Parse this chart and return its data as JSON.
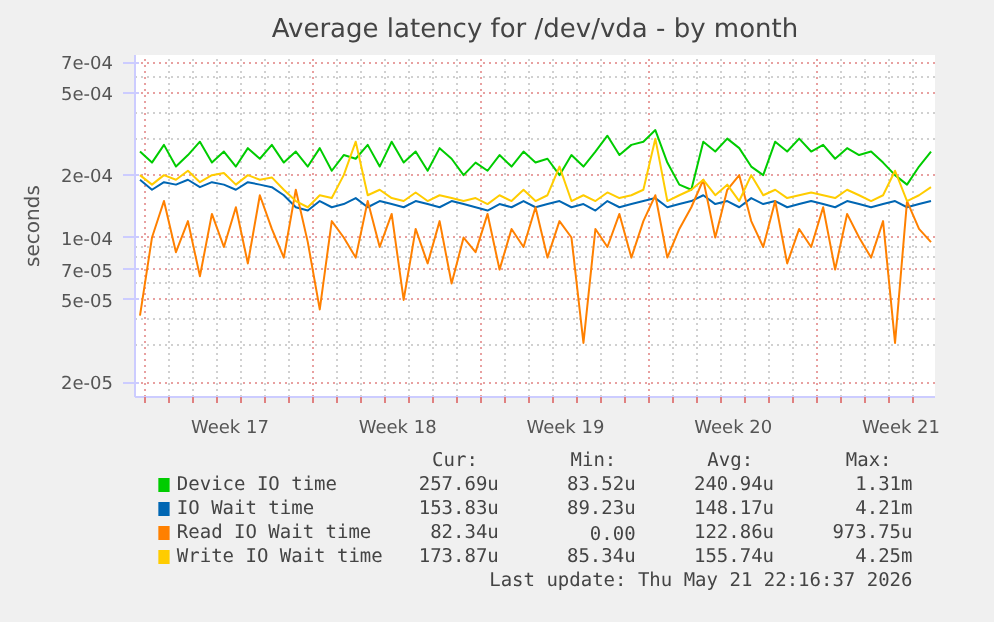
{
  "chart_data": {
    "type": "line",
    "title": "Average latency for /dev/vda - by month",
    "ylabel": "seconds",
    "x": [
      "2026-04-18T18:00",
      "2026-04-19T06:00",
      "2026-04-19T18:00",
      "2026-04-20T06:00",
      "2026-04-20T18:00",
      "2026-04-21T06:00",
      "2026-04-21T18:00",
      "2026-04-22T06:00",
      "2026-04-22T18:00",
      "2026-04-23T06:00",
      "2026-04-23T18:00",
      "2026-04-24T06:00",
      "2026-04-24T18:00",
      "2026-04-25T06:00",
      "2026-04-25T18:00",
      "2026-04-26T06:00",
      "2026-04-26T18:00",
      "2026-04-27T06:00",
      "2026-04-27T18:00",
      "2026-04-28T06:00",
      "2026-04-28T18:00",
      "2026-04-29T06:00",
      "2026-04-29T18:00",
      "2026-04-30T06:00",
      "2026-04-30T18:00",
      "2026-05-01T06:00",
      "2026-05-01T18:00",
      "2026-05-02T06:00",
      "2026-05-02T18:00",
      "2026-05-03T06:00",
      "2026-05-03T18:00",
      "2026-05-04T06:00",
      "2026-05-04T18:00",
      "2026-05-05T06:00",
      "2026-05-05T18:00",
      "2026-05-06T06:00",
      "2026-05-06T18:00",
      "2026-05-07T06:00",
      "2026-05-07T18:00",
      "2026-05-08T06:00",
      "2026-05-08T18:00",
      "2026-05-09T06:00",
      "2026-05-09T18:00",
      "2026-05-10T06:00",
      "2026-05-10T18:00",
      "2026-05-11T06:00",
      "2026-05-11T18:00",
      "2026-05-12T06:00",
      "2026-05-12T18:00",
      "2026-05-13T06:00",
      "2026-05-13T18:00",
      "2026-05-14T06:00",
      "2026-05-14T18:00",
      "2026-05-15T06:00",
      "2026-05-15T18:00",
      "2026-05-16T06:00",
      "2026-05-16T18:00",
      "2026-05-17T06:00",
      "2026-05-17T18:00",
      "2026-05-18T06:00",
      "2026-05-18T18:00",
      "2026-05-19T06:00",
      "2026-05-19T18:00",
      "2026-05-20T06:00",
      "2026-05-20T18:00",
      "2026-05-21T06:00",
      "2026-05-21T18:00"
    ],
    "series": [
      {
        "name": "Device IO time",
        "color": "#00cc00",
        "values": [
          0.00026,
          0.00023,
          0.00028,
          0.00022,
          0.00025,
          0.00029,
          0.00023,
          0.00026,
          0.00022,
          0.00027,
          0.00024,
          0.00028,
          0.00023,
          0.00026,
          0.00022,
          0.00027,
          0.00021,
          0.00025,
          0.00024,
          0.00028,
          0.00022,
          0.00029,
          0.00023,
          0.00026,
          0.00021,
          0.00027,
          0.00024,
          0.0002,
          0.00023,
          0.00021,
          0.00025,
          0.00022,
          0.00026,
          0.00023,
          0.00024,
          0.0002,
          0.00025,
          0.00022,
          0.00026,
          0.00031,
          0.00025,
          0.00028,
          0.00029,
          0.00033,
          0.00023,
          0.00018,
          0.00017,
          0.00029,
          0.00026,
          0.0003,
          0.00027,
          0.00022,
          0.0002,
          0.00029,
          0.00026,
          0.0003,
          0.00026,
          0.00028,
          0.00024,
          0.00027,
          0.00025,
          0.00026,
          0.00023,
          0.0002,
          0.00018,
          0.00022,
          0.00026
        ]
      },
      {
        "name": "IO Wait time",
        "color": "#0066b3",
        "values": [
          0.00019,
          0.00017,
          0.000185,
          0.00018,
          0.00019,
          0.000175,
          0.000185,
          0.00018,
          0.00017,
          0.000185,
          0.00018,
          0.000175,
          0.00016,
          0.00014,
          0.000135,
          0.00015,
          0.00014,
          0.000145,
          0.000155,
          0.00014,
          0.00015,
          0.000145,
          0.00014,
          0.00015,
          0.000145,
          0.00014,
          0.00015,
          0.000145,
          0.00014,
          0.000135,
          0.000145,
          0.00014,
          0.00015,
          0.00014,
          0.000145,
          0.00015,
          0.00014,
          0.000145,
          0.000135,
          0.00015,
          0.00014,
          0.000145,
          0.00015,
          0.000155,
          0.00014,
          0.000145,
          0.00015,
          0.00016,
          0.000145,
          0.00015,
          0.00014,
          0.000155,
          0.000145,
          0.00015,
          0.00014,
          0.000145,
          0.00015,
          0.000145,
          0.00014,
          0.00015,
          0.000145,
          0.00014,
          0.000145,
          0.00015,
          0.00014,
          0.000145,
          0.00015
        ]
      },
      {
        "name": "Read IO Wait time",
        "color": "#ff8000",
        "values": [
          4.2e-05,
          0.0001,
          0.00015,
          8.5e-05,
          0.00012,
          6.5e-05,
          0.00013,
          9e-05,
          0.00014,
          7.5e-05,
          0.00016,
          0.00011,
          8e-05,
          0.00017,
          9.5e-05,
          4.5e-05,
          0.00012,
          0.0001,
          8e-05,
          0.00015,
          9e-05,
          0.00013,
          5e-05,
          0.00011,
          7.5e-05,
          0.00012,
          6e-05,
          0.0001,
          8.5e-05,
          0.00013,
          7e-05,
          0.00011,
          9e-05,
          0.00014,
          8e-05,
          0.00012,
          0.0001,
          3.1e-05,
          0.00011,
          9e-05,
          0.00013,
          8e-05,
          0.00012,
          0.00016,
          8e-05,
          0.00011,
          0.00014,
          0.00019,
          0.0001,
          0.00017,
          0.0002,
          0.00012,
          9e-05,
          0.00015,
          7.5e-05,
          0.00011,
          9e-05,
          0.00014,
          7e-05,
          0.00013,
          0.0001,
          8e-05,
          0.00012,
          3.1e-05,
          0.00015,
          0.00011,
          9.5e-05
        ]
      },
      {
        "name": "Write IO Wait time",
        "color": "#ffcc00",
        "values": [
          0.0002,
          0.00018,
          0.0002,
          0.00019,
          0.00021,
          0.000185,
          0.0002,
          0.000205,
          0.00018,
          0.0002,
          0.00019,
          0.000195,
          0.00017,
          0.00015,
          0.00014,
          0.00016,
          0.000155,
          0.0002,
          0.00029,
          0.00016,
          0.00017,
          0.000155,
          0.00015,
          0.000165,
          0.00015,
          0.00016,
          0.000155,
          0.00015,
          0.000155,
          0.000145,
          0.00016,
          0.00015,
          0.00017,
          0.00015,
          0.00016,
          0.00022,
          0.00015,
          0.00016,
          0.00015,
          0.000165,
          0.000155,
          0.00016,
          0.00017,
          0.0003,
          0.00015,
          0.00016,
          0.00017,
          0.00019,
          0.00016,
          0.00018,
          0.00015,
          0.0002,
          0.00016,
          0.00017,
          0.000155,
          0.00016,
          0.000165,
          0.00016,
          0.000155,
          0.00017,
          0.00016,
          0.00015,
          0.00016,
          0.00021,
          0.00015,
          0.00016,
          0.000175
        ]
      }
    ],
    "log": "y",
    "grid": true,
    "legend": "bottom",
    "marker": "none",
    "line_style": "solid",
    "xlim": [
      "2026-04-18T13:00",
      "2026-05-21T22:00"
    ],
    "xticks": [
      {
        "value": "2026-04-19",
        "label": null
      },
      {
        "value": "2026-04-26",
        "label": null
      },
      {
        "value": "2026-05-03",
        "label": null
      },
      {
        "value": "2026-05-10",
        "label": null
      },
      {
        "value": "2026-05-17",
        "label": null
      },
      {
        "value": "2026-04-22T12:00",
        "label": "Week 17"
      },
      {
        "value": "2026-04-29T12:00",
        "label": "Week 18"
      },
      {
        "value": "2026-05-06T12:00",
        "label": "Week 19"
      },
      {
        "value": "2026-05-13T12:00",
        "label": "Week 20"
      },
      {
        "value": "2026-05-20T12:00",
        "label": "Week 21"
      }
    ],
    "ylim": [
      1.7e-05,
      0.00076
    ],
    "yticks": [
      {
        "value": 2e-05,
        "label": "2e-05"
      },
      {
        "value": 5e-05,
        "label": "5e-05"
      },
      {
        "value": 7e-05,
        "label": "7e-05"
      },
      {
        "value": 0.0001,
        "label": "1e-04"
      },
      {
        "value": 0.0002,
        "label": "2e-04"
      },
      {
        "value": 0.0005,
        "label": "5e-04"
      },
      {
        "value": 0.0007,
        "label": "7e-04"
      },
      {
        "value": 3e-05,
        "label": null
      },
      {
        "value": 4e-05,
        "label": null
      },
      {
        "value": 6e-05,
        "label": null
      },
      {
        "value": 8e-05,
        "label": null
      },
      {
        "value": 9e-05,
        "label": null
      },
      {
        "value": 0.0003,
        "label": null
      },
      {
        "value": 0.0004,
        "label": null
      },
      {
        "value": 0.0006,
        "label": null
      }
    ],
    "annotations": [
      "Cur:",
      "Min:",
      "Avg:",
      "Max:",
      "257.69u",
      "83.52u",
      "240.94u",
      "1.31m",
      "153.83u",
      "89.23u",
      "148.17u",
      "4.21m",
      "82.34u",
      "0.00",
      "122.86u",
      "973.75u",
      "173.87u",
      "85.34u",
      "155.74u",
      "4.25m",
      "Last update: Thu May 21 22:16:37 2026"
    ]
  }
}
